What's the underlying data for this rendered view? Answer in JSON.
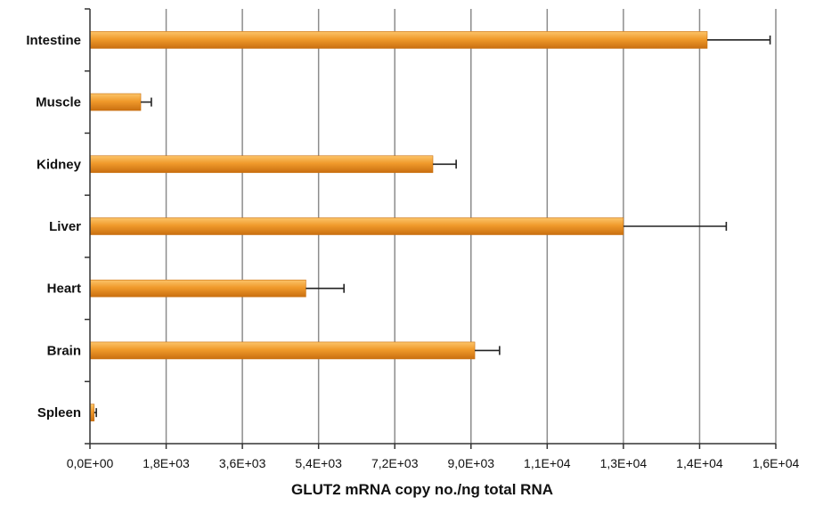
{
  "chart_data": {
    "type": "bar",
    "orientation": "horizontal",
    "title": "",
    "xlabel": "GLUT2 mRNA copy no./ng total RNA",
    "ylabel": "",
    "categories": [
      "Intestine",
      "Muscle",
      "Kidney",
      "Liver",
      "Heart",
      "Brain",
      "Spleen"
    ],
    "values": [
      14200,
      1200,
      8100,
      13000,
      5100,
      9100,
      100
    ],
    "errors": [
      1650,
      250,
      550,
      1700,
      900,
      650,
      50
    ],
    "xlim": [
      0,
      16000
    ],
    "x_ticks": [
      0,
      1800,
      3600,
      5400,
      7200,
      9000,
      11000,
      13000,
      14000,
      16000
    ],
    "x_tick_labels": [
      "0,0E+00",
      "1,8E+03",
      "3,6E+03",
      "5,4E+03",
      "7,2E+03",
      "9,0E+03",
      "1,1E+04",
      "1,3E+04",
      "1,4E+04",
      "1,6E+04"
    ],
    "grid": "vertical",
    "legend": "none",
    "colors": {
      "bar": "#f09a2b",
      "bar_highlight": "#fcc56a",
      "bar_shadow": "#c96f10",
      "grid": "#8c8c8c",
      "axis": "#333333",
      "error_bar": "#222222"
    }
  }
}
